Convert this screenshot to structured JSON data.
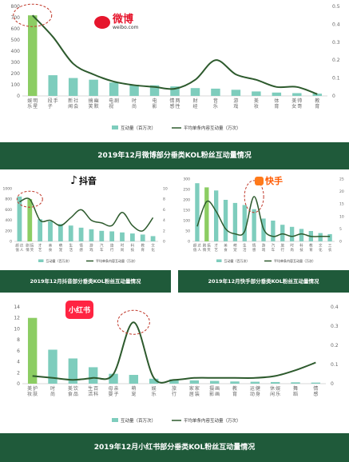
{
  "chart_data": [
    {
      "type": "bar",
      "platform": "微博",
      "platform_sub": "weibo.com",
      "title": "2019年12月微博部分垂类KOL粉丝互动量情况",
      "categories": [
        "娱乐明星",
        "段子手",
        "新闻社会",
        "搞笑幽默",
        "电视剧",
        "时尚",
        "电影",
        "情感两性",
        "财经",
        "音乐",
        "游戏",
        "美妆",
        "体育",
        "美女帅哥",
        "教育"
      ],
      "series": [
        {
          "name": "互动量（百万次）",
          "kind": "bar",
          "axis": "left",
          "values": [
            720,
            185,
            160,
            145,
            120,
            100,
            95,
            85,
            70,
            65,
            55,
            40,
            30,
            25,
            20
          ]
        },
        {
          "name": "平均单条内容互动量（万次）",
          "kind": "line",
          "axis": "right",
          "values": [
            0.45,
            0.33,
            0.18,
            0.12,
            0.08,
            0.06,
            0.05,
            0.04,
            0.09,
            0.2,
            0.12,
            0.09,
            0.05,
            0.05,
            0.01
          ]
        }
      ],
      "ylim_left": [
        0,
        800
      ],
      "yticks_left": [
        "0",
        "100",
        "200",
        "300",
        "400",
        "500",
        "600",
        "700",
        "800"
      ],
      "ylim_right": [
        0,
        0.5
      ],
      "yticks_right": [
        "0",
        "0.1",
        "0.2",
        "0.3",
        "0.4",
        "0.5"
      ],
      "highlight": 0
    },
    {
      "type": "bar",
      "platform": "抖音",
      "title": "2019年12月抖音部分垂类KOL粉丝互动量情况",
      "categories": [
        "颜值达人",
        "剧情搞笑",
        "才艺",
        "美食",
        "萌宠",
        "生活",
        "情感",
        "游戏",
        "汽车",
        "旅行",
        "时尚",
        "科技",
        "教育",
        "文化"
      ],
      "series": [
        {
          "name": "互动量（百万次）",
          "kind": "bar",
          "axis": "left",
          "values": [
            850,
            800,
            420,
            380,
            330,
            300,
            260,
            230,
            200,
            190,
            170,
            150,
            130,
            100
          ]
        },
        {
          "name": "平均单条内容互动量（万次）",
          "kind": "line",
          "axis": "right",
          "values": [
            7.5,
            8.0,
            4.0,
            4.0,
            3.0,
            4.5,
            6.0,
            4.0,
            3.5,
            3.0,
            5.5,
            3.0,
            2.0,
            4.5
          ]
        }
      ],
      "ylim_left": [
        0,
        1000
      ],
      "yticks_left": [
        "0",
        "200",
        "400",
        "600",
        "800",
        "1000"
      ],
      "ylim_right": [
        0,
        10
      ],
      "yticks_right": [
        "0",
        "2",
        "4",
        "6",
        "8",
        "10"
      ],
      "highlight": 1
    },
    {
      "type": "bar",
      "platform": "快手",
      "title": "2019年12月快手部分垂类KOL粉丝互动量情况",
      "categories": [
        "颜值达人",
        "剧情搞笑",
        "才艺",
        "美食",
        "萌宠",
        "生活",
        "情感",
        "游戏",
        "汽车",
        "旅行",
        "时尚",
        "科技",
        "教育",
        "文化",
        "三农"
      ],
      "series": [
        {
          "name": "互动量（百万次）",
          "kind": "bar",
          "axis": "left",
          "values": [
            280,
            260,
            245,
            200,
            185,
            175,
            155,
            110,
            100,
            80,
            70,
            60,
            50,
            40,
            35
          ]
        },
        {
          "name": "平均单条内容互动量（万次）",
          "kind": "line",
          "axis": "right",
          "values": [
            6,
            16,
            12,
            5,
            3,
            4,
            18,
            5,
            2,
            3,
            2,
            3,
            2,
            2,
            2
          ]
        }
      ],
      "ylim_left": [
        0,
        300
      ],
      "yticks_left": [
        "0",
        "50",
        "100",
        "150",
        "200",
        "250",
        "300"
      ],
      "ylim_right": [
        0,
        25
      ],
      "yticks_right": [
        "0",
        "5",
        "10",
        "15",
        "20",
        "25"
      ],
      "highlight": 1
    },
    {
      "type": "bar",
      "platform": "小红书",
      "title": "2019年12月小红书部分垂类KOL粉丝互动量情况",
      "categories": [
        "美妆护肤",
        "时尚",
        "美食饮品",
        "生活百科",
        "母婴亲子",
        "萌宠",
        "娱乐",
        "旅行",
        "家居家装",
        "摄影画画",
        "教育",
        "运动健身",
        "休闲娱乐",
        "舞蹈",
        "情感"
      ],
      "series": [
        {
          "name": "互动量（百万次）",
          "kind": "bar",
          "axis": "left",
          "values": [
            12,
            6.2,
            4.6,
            3.0,
            1.8,
            1.6,
            0.9,
            0.8,
            0.6,
            0.5,
            0.4,
            0.35,
            0.3,
            0.25,
            0.2
          ]
        },
        {
          "name": "平均单条内容互动量（万次）",
          "kind": "line",
          "axis": "right",
          "values": [
            0.04,
            0.03,
            0.02,
            0.03,
            0.05,
            0.32,
            0.03,
            0.02,
            0.03,
            0.03,
            0.03,
            0.03,
            0.04,
            0.07,
            0.11
          ]
        }
      ],
      "ylim_left": [
        0,
        14
      ],
      "yticks_left": [
        "0",
        "2",
        "4",
        "6",
        "8",
        "10",
        "12",
        "14"
      ],
      "ylim_right": [
        0,
        0.4
      ],
      "yticks_right": [
        "0",
        "0.1",
        "0.2",
        "0.3",
        "0.4"
      ],
      "highlight": 0
    }
  ],
  "colors": {
    "bar": "#7ecdbd",
    "bar_highlight": "#8ccd63",
    "line": "#2d5a2d",
    "banner": "#1f5a3a",
    "ellipse": "#c0392b",
    "axis_text": "#666666"
  }
}
